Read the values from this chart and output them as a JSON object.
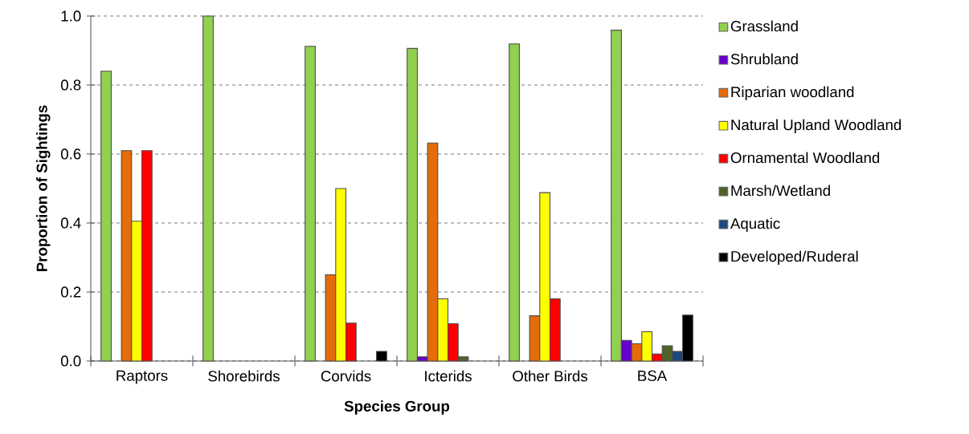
{
  "chart_data": {
    "type": "bar",
    "xlabel": "Species Group",
    "ylabel": "Proportion of Sightings",
    "categories": [
      "Raptors",
      "Shorebirds",
      "Corvids",
      "Icterids",
      "Other Birds",
      "BSA"
    ],
    "series": [
      {
        "name": "Grassland",
        "color": "#92d050",
        "values": [
          0.84,
          1.0,
          0.912,
          0.906,
          0.919,
          0.959
        ]
      },
      {
        "name": "Shrubland",
        "color": "#6600cc",
        "values": [
          null,
          null,
          null,
          0.012,
          null,
          0.06
        ]
      },
      {
        "name": "Riparian woodland",
        "color": "#e46c0a",
        "values": [
          0.61,
          null,
          0.25,
          0.632,
          0.131,
          0.05
        ]
      },
      {
        "name": "Natural Upland Woodland",
        "color": "#ffff00",
        "values": [
          0.405,
          null,
          0.5,
          0.18,
          0.488,
          0.085
        ]
      },
      {
        "name": "Ornamental Woodland",
        "color": "#ff0000",
        "values": [
          0.61,
          null,
          0.11,
          0.108,
          0.18,
          0.02
        ]
      },
      {
        "name": "Marsh/Wetland",
        "color": "#4f6228",
        "values": [
          null,
          null,
          null,
          0.012,
          null,
          0.044
        ]
      },
      {
        "name": "Aquatic",
        "color": "#1f497d",
        "values": [
          null,
          null,
          null,
          null,
          null,
          0.028
        ]
      },
      {
        "name": "Developed/Ruderal",
        "color": "#000000",
        "values": [
          null,
          null,
          0.028,
          null,
          null,
          0.133
        ]
      }
    ],
    "ylim": [
      0,
      1
    ],
    "yticks": [
      {
        "value": 0,
        "label": "0.0"
      },
      {
        "value": 0.2,
        "label": "0.2"
      },
      {
        "value": 0.4,
        "label": "0.4"
      },
      {
        "value": 0.6,
        "label": "0.6"
      },
      {
        "value": 0.8,
        "label": "0.8"
      },
      {
        "value": 1,
        "label": "1.0"
      }
    ],
    "grid": "y",
    "legend": "right"
  }
}
